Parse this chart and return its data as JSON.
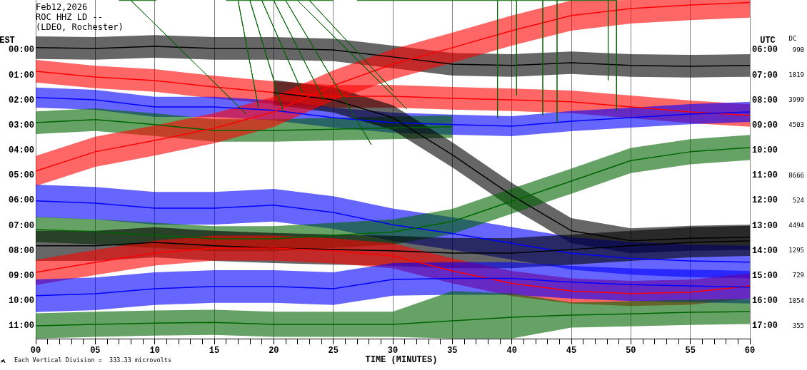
{
  "chart_data": {
    "type": "line",
    "title": "Feb12,2026",
    "subtitle": "ROC HHZ LD --",
    "annotations": [
      "(LDEO, Rochester)",
      "Each Vertical Division =  333.33 microvolts"
    ],
    "xlabel": "TIME (MINUTES)",
    "ylabel": "EST",
    "y2label": "DC",
    "y3label": "UTC",
    "x": [
      0,
      5,
      10,
      15,
      20,
      25,
      30,
      35,
      40,
      45,
      50,
      55,
      60
    ],
    "xlim": [
      0,
      60
    ],
    "xticks": [
      {
        "value": 0,
        "label": "00"
      },
      {
        "value": 1,
        "label": null
      },
      {
        "value": 2,
        "label": null
      },
      {
        "value": 3,
        "label": null
      },
      {
        "value": 4,
        "label": null
      },
      {
        "value": 5,
        "label": "05"
      },
      {
        "value": 6,
        "label": null
      },
      {
        "value": 7,
        "label": null
      },
      {
        "value": 8,
        "label": null
      },
      {
        "value": 9,
        "label": null
      },
      10,
      {
        "value": 11,
        "label": null
      },
      {
        "value": 12,
        "label": null
      },
      {
        "value": 13,
        "label": null
      },
      {
        "value": 14,
        "label": null
      },
      15,
      {
        "value": 16,
        "label": null
      },
      {
        "value": 17,
        "label": null
      },
      {
        "value": 18,
        "label": null
      },
      {
        "value": 19,
        "label": null
      },
      20,
      {
        "value": 21,
        "label": null
      },
      {
        "value": 22,
        "label": null
      },
      {
        "value": 23,
        "label": null
      },
      {
        "value": 24,
        "label": null
      },
      25,
      {
        "value": 26,
        "label": null
      },
      {
        "value": 27,
        "label": null
      },
      {
        "value": 28,
        "label": null
      },
      {
        "value": 29,
        "label": null
      },
      30,
      {
        "value": 31,
        "label": null
      },
      {
        "value": 32,
        "label": null
      },
      {
        "value": 33,
        "label": null
      },
      {
        "value": 34,
        "label": null
      },
      35,
      {
        "value": 36,
        "label": null
      },
      {
        "value": 37,
        "label": null
      },
      {
        "value": 38,
        "label": null
      },
      {
        "value": 39,
        "label": null
      },
      40,
      {
        "value": 41,
        "label": null
      },
      {
        "value": 42,
        "label": null
      },
      {
        "value": 43,
        "label": null
      },
      {
        "value": 44,
        "label": null
      },
      45,
      {
        "value": 46,
        "label": null
      },
      {
        "value": 47,
        "label": null
      },
      {
        "value": 48,
        "label": null
      },
      {
        "value": 49,
        "label": null
      },
      50,
      {
        "value": 51,
        "label": null
      },
      {
        "value": 52,
        "label": null
      },
      {
        "value": 53,
        "label": null
      },
      {
        "value": 54,
        "label": null
      },
      55,
      {
        "value": 56,
        "label": null
      },
      {
        "value": 57,
        "label": null
      },
      {
        "value": 58,
        "label": null
      },
      {
        "value": 59,
        "label": null
      },
      60
    ],
    "ylim": [
      11.5,
      -2.0
    ],
    "yticks": [
      {
        "value": 0,
        "label": "00:00"
      },
      {
        "value": 1,
        "label": "01:00"
      },
      {
        "value": 2,
        "label": "02:00"
      },
      {
        "value": 3,
        "label": "03:00"
      },
      {
        "value": 4,
        "label": "04:00"
      },
      {
        "value": 5,
        "label": "05:00"
      },
      {
        "value": 6,
        "label": "06:00"
      },
      {
        "value": 7,
        "label": "07:00"
      },
      {
        "value": 8,
        "label": "08:00"
      },
      {
        "value": 9,
        "label": "09:00"
      },
      {
        "value": 10,
        "label": "10:00"
      },
      {
        "value": 11,
        "label": "11:00"
      }
    ],
    "y2_categories": [
      "990",
      "1819",
      "3999",
      "4503",
      null,
      "8666",
      "524",
      "4494",
      "1295",
      "729",
      "1054",
      "355"
    ],
    "y3lim": [
      17.5,
      4.0
    ],
    "y3ticks": [
      {
        "value": 6,
        "label": "06:00"
      },
      {
        "value": 7,
        "label": "07:00"
      },
      {
        "value": 8,
        "label": "08:00"
      },
      {
        "value": 9,
        "label": "09:00"
      },
      {
        "value": 10,
        "label": "10:00"
      },
      {
        "value": 11,
        "label": "11:00"
      },
      {
        "value": 12,
        "label": "12:00"
      },
      {
        "value": 13,
        "label": "13:00"
      },
      {
        "value": 14,
        "label": "14:00"
      },
      {
        "value": 15,
        "label": "15:00"
      },
      {
        "value": 16,
        "label": "16:00"
      },
      {
        "value": 17,
        "label": "17:00"
      }
    ],
    "grid": "x",
    "series": [
      {
        "color": "#000000",
        "values": [
          -0.1,
          -0.07,
          -0.15,
          -0.07,
          -0.07,
          -0.01,
          0.27,
          0.56,
          0.61,
          0.5,
          0.61,
          0.64,
          0.61
        ],
        "lower": [
          -0.55,
          -0.52,
          -0.6,
          -0.52,
          -0.52,
          -0.46,
          -0.18,
          0.11,
          0.16,
          0.05,
          0.16,
          0.19,
          0.16
        ],
        "upper": [
          0.35,
          0.38,
          0.3,
          0.38,
          0.38,
          0.44,
          0.72,
          1.01,
          1.06,
          0.95,
          1.06,
          1.09,
          1.06
        ]
      },
      {
        "color": "#ff0000",
        "values": [
          0.84,
          1.07,
          1.21,
          1.47,
          1.69,
          1.84,
          1.84,
          1.92,
          1.98,
          2.06,
          2.26,
          2.46,
          2.6
        ],
        "lower": [
          0.39,
          0.62,
          0.76,
          1.02,
          1.24,
          1.39,
          1.39,
          1.47,
          1.53,
          1.61,
          1.81,
          2.01,
          2.15
        ],
        "upper": [
          1.29,
          1.52,
          1.66,
          1.92,
          2.14,
          2.29,
          2.29,
          2.37,
          2.43,
          2.51,
          2.71,
          2.91,
          3.05
        ]
      },
      {
        "color": "#0000ff",
        "values": [
          1.89,
          1.98,
          2.26,
          2.26,
          2.4,
          2.69,
          2.89,
          2.97,
          3.03,
          2.83,
          2.69,
          2.55,
          2.46
        ],
        "lower": [
          1.49,
          1.58,
          1.86,
          1.86,
          2.0,
          2.29,
          2.49,
          2.57,
          2.63,
          2.43,
          2.29,
          2.15,
          2.06
        ],
        "upper": [
          2.29,
          2.38,
          2.66,
          2.66,
          2.8,
          3.09,
          3.29,
          3.37,
          3.43,
          3.23,
          3.09,
          2.95,
          2.86
        ]
      },
      {
        "color": "#006400",
        "values": [
          2.89,
          2.77,
          2.97,
          3.2,
          3.2,
          3.15,
          3.1,
          3.05,
          null,
          null,
          null,
          null,
          null
        ],
        "lower": [
          2.44,
          2.32,
          2.52,
          2.75,
          2.75,
          2.7,
          2.65,
          2.6,
          null,
          null,
          null,
          null,
          null
        ],
        "upper": [
          3.34,
          3.22,
          3.42,
          3.65,
          3.65,
          3.6,
          3.55,
          3.5,
          null,
          null,
          null,
          null,
          null
        ]
      },
      {
        "color": "#000000",
        "values": [
          null,
          null,
          null,
          null,
          1.69,
          1.98,
          2.69,
          4.17,
          5.79,
          7.2,
          7.6,
          7.5,
          7.46
        ],
        "lower": [
          null,
          null,
          null,
          null,
          1.19,
          1.48,
          2.19,
          3.67,
          5.29,
          6.7,
          7.1,
          7.0,
          6.96
        ],
        "upper": [
          null,
          null,
          null,
          null,
          2.19,
          2.48,
          3.19,
          4.67,
          6.29,
          7.7,
          8.1,
          8.0,
          7.96
        ]
      },
      {
        "color": "#ff0000",
        "values": [
          4.82,
          4.05,
          3.6,
          3.11,
          2.46,
          1.41,
          0.56,
          -0.1,
          -0.78,
          -1.38,
          -1.66,
          -1.8,
          -1.9
        ],
        "lower": [
          4.22,
          3.45,
          3.0,
          2.51,
          1.86,
          0.81,
          -0.04,
          -0.7,
          -1.38,
          -1.98,
          -2.0,
          -2.0,
          -2.0
        ],
        "upper": [
          5.42,
          4.65,
          4.2,
          3.71,
          3.06,
          2.01,
          1.16,
          0.5,
          -0.18,
          -0.78,
          -1.06,
          -1.2,
          -1.3
        ]
      },
      {
        "color": "#0000ff",
        "values": [
          6.01,
          6.1,
          6.3,
          6.3,
          6.18,
          6.47,
          6.96,
          7.31,
          7.7,
          8.1,
          8.3,
          8.4,
          8.45
        ],
        "lower": [
          5.36,
          5.45,
          5.65,
          5.65,
          5.53,
          5.82,
          6.31,
          6.66,
          7.05,
          7.45,
          7.65,
          7.75,
          7.8
        ],
        "upper": [
          6.66,
          6.75,
          6.95,
          6.95,
          6.83,
          7.12,
          7.61,
          7.96,
          8.35,
          8.75,
          8.95,
          9.05,
          9.1
        ]
      },
      {
        "color": "#006400",
        "values": [
          7.15,
          7.24,
          7.38,
          7.52,
          7.52,
          7.38,
          7.25,
          6.83,
          6.02,
          5.22,
          4.4,
          4.05,
          3.88
        ],
        "lower": [
          6.65,
          6.74,
          6.88,
          7.02,
          7.02,
          6.88,
          6.75,
          6.33,
          5.52,
          4.72,
          3.9,
          3.55,
          3.38
        ],
        "upper": [
          7.65,
          7.74,
          7.88,
          8.02,
          8.02,
          7.88,
          7.75,
          7.33,
          6.52,
          5.72,
          4.9,
          4.55,
          4.38
        ]
      },
      {
        "color": "#000000",
        "values": [
          7.8,
          7.8,
          7.66,
          7.8,
          7.89,
          7.95,
          8.0,
          8.09,
          8.09,
          7.95,
          7.8,
          7.66,
          7.6
        ],
        "lower": [
          7.2,
          7.2,
          7.06,
          7.2,
          7.29,
          7.35,
          7.4,
          7.49,
          7.49,
          7.35,
          7.2,
          7.06,
          7.0
        ],
        "upper": [
          8.4,
          8.4,
          8.26,
          8.4,
          8.49,
          8.55,
          8.6,
          8.69,
          8.69,
          8.55,
          8.4,
          8.26,
          8.2
        ]
      },
      {
        "color": "#ff0000",
        "values": [
          8.86,
          8.46,
          8.09,
          7.89,
          7.89,
          8.0,
          8.2,
          8.8,
          9.3,
          9.6,
          9.7,
          9.65,
          9.4
        ],
        "lower": [
          8.36,
          7.96,
          7.59,
          7.39,
          7.39,
          7.5,
          7.7,
          8.3,
          8.8,
          9.1,
          9.2,
          9.15,
          8.9
        ],
        "upper": [
          9.36,
          8.96,
          8.59,
          8.39,
          8.39,
          8.5,
          8.7,
          9.3,
          9.8,
          10.1,
          10.2,
          10.15,
          9.9
        ]
      },
      {
        "color": "#0000ff",
        "values": [
          9.79,
          9.71,
          9.51,
          9.42,
          9.42,
          9.51,
          9.14,
          9.1,
          9.1,
          9.25,
          9.35,
          9.4,
          9.45
        ],
        "lower": [
          9.14,
          9.06,
          8.86,
          8.77,
          8.77,
          8.86,
          8.49,
          8.45,
          8.45,
          8.6,
          8.7,
          8.75,
          8.8
        ],
        "upper": [
          10.44,
          10.36,
          10.16,
          10.07,
          10.07,
          10.16,
          9.79,
          9.75,
          9.75,
          9.9,
          10.0,
          10.05,
          10.1
        ]
      },
      {
        "color": "#006400",
        "values": [
          10.99,
          10.93,
          10.88,
          10.85,
          10.93,
          10.93,
          10.93,
          10.79,
          10.65,
          10.56,
          10.51,
          10.45,
          10.42
        ],
        "lower": [
          10.49,
          10.43,
          10.38,
          10.35,
          10.43,
          10.43,
          10.43,
          9.6,
          9.7,
          10.06,
          10.01,
          9.95,
          9.92
        ],
        "upper": [
          11.49,
          11.43,
          11.38,
          11.35,
          11.43,
          11.43,
          11.43,
          11.49,
          11.49,
          11.06,
          11.01,
          10.95,
          10.92
        ]
      },
      {
        "color": "#006400",
        "x": [
          7,
          8,
          17.7,
          8,
          10.1
        ],
        "values": [
          -1.98,
          -1.98,
          2.55,
          -1.98,
          -1.98
        ]
      },
      {
        "color": "#006400",
        "x": [
          16,
          17,
          18.7,
          17,
          18,
          20.8,
          18,
          19,
          22.4,
          19,
          20,
          24.2,
          20,
          21,
          28.2,
          21,
          22,
          31.2,
          22,
          23,
          30,
          23,
          25
        ],
        "values": [
          -1.98,
          -1.98,
          2.26,
          -1.98,
          -1.98,
          2.46,
          -1.98,
          -1.98,
          1.69,
          -1.98,
          -1.98,
          1.98,
          -1.98,
          -1.98,
          3.77,
          -1.98,
          -1.98,
          2.35,
          -1.98,
          -1.98,
          1.6,
          -1.98,
          -1.98
        ]
      },
      {
        "color": "#006400",
        "x": [
          27,
          38.8,
          38.8,
          38.8,
          40.4,
          40.4,
          40.4,
          42.6,
          42.6,
          42.6,
          43.8,
          43.8,
          43.8,
          48.1,
          48.1,
          48.1,
          48.8,
          48.8
        ],
        "values": [
          -1.98,
          -1.98,
          2.7,
          -1.98,
          -1.98,
          1.8,
          -1.98,
          -1.98,
          2.6,
          -1.98,
          -1.98,
          2.9,
          -1.98,
          -1.98,
          1.2,
          -1.98,
          -1.98,
          2.4
        ]
      }
    ]
  }
}
